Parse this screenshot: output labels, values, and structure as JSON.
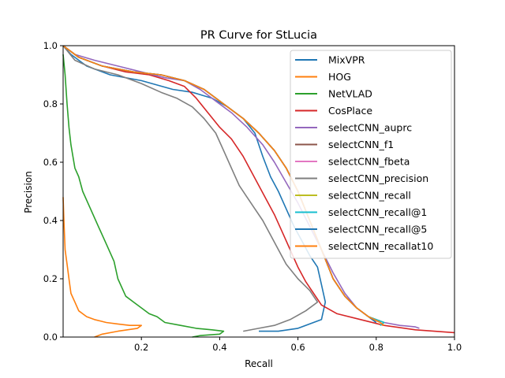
{
  "chart_data": {
    "type": "line",
    "title": "PR Curve for StLucia",
    "xlabel": "Recall",
    "ylabel": "Precision",
    "xlim": [
      0.0,
      1.0
    ],
    "ylim": [
      0.0,
      1.0
    ],
    "x_ticks": [
      0.2,
      0.4,
      0.6,
      0.8,
      1.0
    ],
    "y_ticks": [
      0.0,
      0.2,
      0.4,
      0.6,
      0.8,
      1.0
    ],
    "x_tick_labels": [
      "0.2",
      "0.4",
      "0.6",
      "0.8",
      "1.0"
    ],
    "y_tick_labels": [
      "0.0",
      "0.2",
      "0.4",
      "0.6",
      "0.8",
      "1.0"
    ],
    "grid": false,
    "legend_position": "top-right",
    "series": [
      {
        "name": "MixVPR",
        "color": "#1f77b4",
        "x": [
          0.0,
          0.02,
          0.06,
          0.12,
          0.2,
          0.28,
          0.33,
          0.38,
          0.42,
          0.46,
          0.49,
          0.51,
          0.53,
          0.55,
          0.57,
          0.59,
          0.61,
          0.63,
          0.65,
          0.66,
          0.67,
          0.66,
          0.6,
          0.55,
          0.5
        ],
        "y": [
          1.0,
          0.97,
          0.93,
          0.9,
          0.88,
          0.85,
          0.84,
          0.82,
          0.79,
          0.75,
          0.7,
          0.62,
          0.55,
          0.5,
          0.44,
          0.38,
          0.33,
          0.28,
          0.24,
          0.18,
          0.12,
          0.06,
          0.03,
          0.02,
          0.02
        ]
      },
      {
        "name": "HOG",
        "color": "#ff7f0e",
        "x": [
          0.0,
          0.002,
          0.005,
          0.01,
          0.015,
          0.02,
          0.03,
          0.04,
          0.06,
          0.08,
          0.11,
          0.14,
          0.17,
          0.2,
          0.19,
          0.14,
          0.1,
          0.08
        ],
        "y": [
          0.48,
          0.4,
          0.3,
          0.25,
          0.2,
          0.15,
          0.12,
          0.09,
          0.07,
          0.06,
          0.05,
          0.045,
          0.04,
          0.04,
          0.03,
          0.02,
          0.01,
          0.0
        ]
      },
      {
        "name": "NetVLAD",
        "color": "#2ca02c",
        "x": [
          0.0,
          0.005,
          0.01,
          0.015,
          0.02,
          0.025,
          0.03,
          0.04,
          0.05,
          0.07,
          0.09,
          0.11,
          0.13,
          0.14,
          0.16,
          0.18,
          0.2,
          0.22,
          0.24,
          0.26,
          0.3,
          0.34,
          0.38,
          0.41,
          0.4,
          0.35,
          0.33
        ],
        "y": [
          0.97,
          0.9,
          0.8,
          0.72,
          0.66,
          0.62,
          0.58,
          0.55,
          0.5,
          0.44,
          0.38,
          0.32,
          0.26,
          0.2,
          0.14,
          0.12,
          0.1,
          0.08,
          0.07,
          0.05,
          0.04,
          0.03,
          0.025,
          0.02,
          0.01,
          0.005,
          0.0
        ]
      },
      {
        "name": "CosPlace",
        "color": "#d62728",
        "x": [
          0.0,
          0.04,
          0.1,
          0.16,
          0.22,
          0.27,
          0.31,
          0.34,
          0.37,
          0.4,
          0.43,
          0.46,
          0.48,
          0.5,
          0.52,
          0.54,
          0.56,
          0.58,
          0.6,
          0.62,
          0.64,
          0.66,
          0.7,
          0.76,
          0.82,
          0.9,
          1.0
        ],
        "y": [
          1.0,
          0.96,
          0.93,
          0.91,
          0.9,
          0.88,
          0.86,
          0.82,
          0.77,
          0.72,
          0.68,
          0.62,
          0.57,
          0.52,
          0.47,
          0.42,
          0.36,
          0.3,
          0.24,
          0.19,
          0.15,
          0.11,
          0.08,
          0.06,
          0.04,
          0.025,
          0.015
        ]
      },
      {
        "name": "selectCNN_auprc",
        "color": "#9467bd",
        "x": [
          0.0,
          0.03,
          0.08,
          0.14,
          0.2,
          0.26,
          0.31,
          0.35,
          0.39,
          0.43,
          0.47,
          0.51,
          0.54,
          0.57,
          0.6,
          0.63,
          0.66,
          0.69,
          0.72,
          0.75,
          0.78,
          0.82,
          0.86,
          0.9,
          0.91
        ],
        "y": [
          1.0,
          0.97,
          0.95,
          0.93,
          0.91,
          0.89,
          0.88,
          0.85,
          0.81,
          0.77,
          0.72,
          0.66,
          0.6,
          0.53,
          0.46,
          0.38,
          0.3,
          0.22,
          0.15,
          0.1,
          0.07,
          0.05,
          0.04,
          0.035,
          0.03
        ]
      },
      {
        "name": "selectCNN_f1",
        "color": "#8c564b",
        "x": [
          0.0,
          0.04,
          0.1,
          0.18,
          0.25,
          0.31,
          0.36,
          0.41,
          0.46,
          0.5,
          0.54,
          0.57,
          0.6,
          0.63,
          0.66,
          0.69,
          0.72,
          0.75,
          0.78,
          0.8
        ],
        "y": [
          1.0,
          0.96,
          0.93,
          0.91,
          0.9,
          0.88,
          0.85,
          0.8,
          0.75,
          0.7,
          0.64,
          0.58,
          0.5,
          0.4,
          0.3,
          0.2,
          0.14,
          0.1,
          0.07,
          0.05
        ]
      },
      {
        "name": "selectCNN_fbeta",
        "color": "#e377c2",
        "x": [
          0.0,
          0.04,
          0.1,
          0.18,
          0.25,
          0.31,
          0.36,
          0.41,
          0.46,
          0.5,
          0.54,
          0.57,
          0.6,
          0.63,
          0.66,
          0.69,
          0.72,
          0.75,
          0.78,
          0.8
        ],
        "y": [
          1.0,
          0.96,
          0.93,
          0.91,
          0.9,
          0.88,
          0.85,
          0.8,
          0.75,
          0.7,
          0.64,
          0.58,
          0.5,
          0.4,
          0.3,
          0.2,
          0.14,
          0.1,
          0.07,
          0.05
        ]
      },
      {
        "name": "selectCNN_precision",
        "color": "#7f7f7f",
        "x": [
          0.0,
          0.03,
          0.08,
          0.14,
          0.2,
          0.25,
          0.29,
          0.33,
          0.36,
          0.39,
          0.41,
          0.43,
          0.45,
          0.47,
          0.49,
          0.51,
          0.53,
          0.55,
          0.57,
          0.6,
          0.63,
          0.65,
          0.62,
          0.58,
          0.54,
          0.5,
          0.46
        ],
        "y": [
          1.0,
          0.95,
          0.92,
          0.9,
          0.87,
          0.84,
          0.82,
          0.79,
          0.75,
          0.7,
          0.64,
          0.58,
          0.52,
          0.48,
          0.44,
          0.4,
          0.35,
          0.3,
          0.25,
          0.2,
          0.16,
          0.12,
          0.09,
          0.06,
          0.04,
          0.03,
          0.02
        ]
      },
      {
        "name": "selectCNN_recall",
        "color": "#bcbd22",
        "x": [
          0.0,
          0.04,
          0.1,
          0.18,
          0.25,
          0.31,
          0.36,
          0.41,
          0.46,
          0.5,
          0.54,
          0.57,
          0.6,
          0.63,
          0.66,
          0.69,
          0.72,
          0.75,
          0.78,
          0.82,
          0.81
        ],
        "y": [
          1.0,
          0.96,
          0.93,
          0.91,
          0.9,
          0.88,
          0.85,
          0.8,
          0.75,
          0.7,
          0.64,
          0.58,
          0.5,
          0.4,
          0.3,
          0.2,
          0.14,
          0.1,
          0.07,
          0.05,
          0.04
        ]
      },
      {
        "name": "selectCNN_recall@1",
        "color": "#17becf",
        "x": [
          0.0,
          0.04,
          0.1,
          0.18,
          0.25,
          0.31,
          0.36,
          0.41,
          0.46,
          0.5,
          0.54,
          0.57,
          0.6,
          0.63,
          0.66,
          0.69,
          0.72,
          0.75,
          0.78,
          0.82,
          0.81
        ],
        "y": [
          1.0,
          0.96,
          0.93,
          0.91,
          0.9,
          0.88,
          0.85,
          0.8,
          0.75,
          0.7,
          0.64,
          0.58,
          0.5,
          0.4,
          0.3,
          0.2,
          0.14,
          0.1,
          0.07,
          0.05,
          0.04
        ]
      },
      {
        "name": "selectCNN_recall@5",
        "color": "#1f77b4",
        "x": [
          0.0,
          0.04,
          0.1,
          0.18,
          0.25,
          0.31,
          0.36,
          0.41,
          0.46,
          0.5,
          0.54,
          0.57,
          0.6,
          0.63,
          0.66,
          0.69,
          0.72,
          0.75,
          0.78,
          0.8
        ],
        "y": [
          1.0,
          0.96,
          0.93,
          0.91,
          0.9,
          0.88,
          0.85,
          0.8,
          0.75,
          0.7,
          0.64,
          0.58,
          0.5,
          0.4,
          0.3,
          0.2,
          0.14,
          0.1,
          0.07,
          0.05
        ]
      },
      {
        "name": "selectCNN_recallat10",
        "color": "#ff7f0e",
        "x": [
          0.0,
          0.04,
          0.1,
          0.18,
          0.25,
          0.31,
          0.36,
          0.41,
          0.46,
          0.5,
          0.54,
          0.57,
          0.6,
          0.63,
          0.66,
          0.69,
          0.72,
          0.75,
          0.78,
          0.81,
          0.82
        ],
        "y": [
          1.0,
          0.96,
          0.93,
          0.91,
          0.9,
          0.88,
          0.85,
          0.8,
          0.75,
          0.7,
          0.64,
          0.58,
          0.5,
          0.4,
          0.3,
          0.2,
          0.14,
          0.1,
          0.07,
          0.05,
          0.04
        ]
      }
    ]
  }
}
